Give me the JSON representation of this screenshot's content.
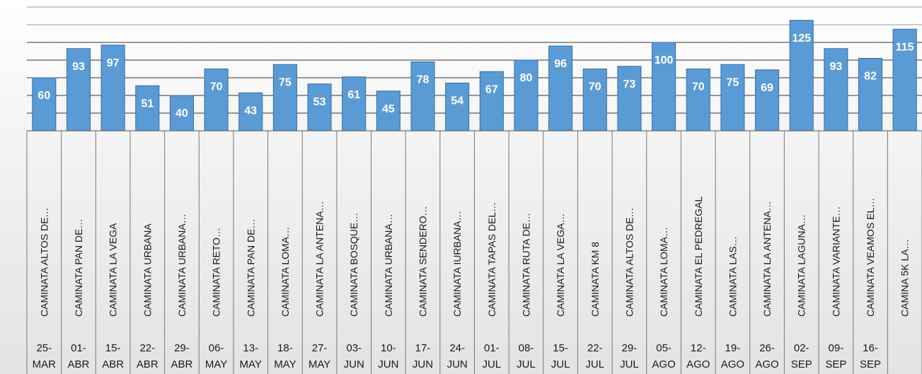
{
  "chart_data": {
    "type": "bar",
    "title": "",
    "xlabel": "",
    "ylabel": "",
    "ylim": [
      0,
      140
    ],
    "grid": true,
    "legend": "none",
    "colors": {
      "bar": "#5b9bd5",
      "bar_edge": "#2f6fae",
      "bar_label": "#ffffff",
      "text": "#1a1a1a",
      "grid": "#333333"
    },
    "categories": [
      "CAMINATA ALTOS DE…",
      "CAMINATA PAN DE…",
      "CAMINATA LA VEGA",
      "CAMINATA URBANA",
      "CAMINATA URBANA…",
      "CAMINATA RETO…",
      "CAMINATA PAN DE…",
      "CAMINATA LOMA…",
      "CAMINATA LA ANTENA…",
      "CAMINATA BOSQUE…",
      "CAMINATA URBANA…",
      "CAMINATA SENDERO…",
      "CAMINATA IURBANA…",
      "CAMINATA TAPAS DEL…",
      "CAMINATA RUTA DE…",
      "CAMINATA LA VEGA…",
      "CAMINATA KM 8",
      "CAMINATA ALTOS DE…",
      "CAMINATA LOMA…",
      "CAMINATA EL PEDREGAL",
      "CAMINATA LAS…",
      "CAMINATA LA ANTENA…",
      "CAMINATA LAGUNA…",
      "CAMINATA VARIANTE…",
      "CAMINATA VEAMOS EL…",
      "CAMINA 5K LA…"
    ],
    "dates": [
      [
        "25-",
        "MAR"
      ],
      [
        "01-",
        "ABR"
      ],
      [
        "15-",
        "ABR"
      ],
      [
        "22-",
        "ABR"
      ],
      [
        "29-",
        "ABR"
      ],
      [
        "06-",
        "MAY"
      ],
      [
        "13-",
        "MAY"
      ],
      [
        "18-",
        "MAY"
      ],
      [
        "27-",
        "MAY"
      ],
      [
        "03-",
        "JUN"
      ],
      [
        "10-",
        "JUN"
      ],
      [
        "17-",
        "JUN"
      ],
      [
        "24-",
        "JUN"
      ],
      [
        "01-",
        "JUL"
      ],
      [
        "08-",
        "JUL"
      ],
      [
        "15-",
        "JUL"
      ],
      [
        "22-",
        "JUL"
      ],
      [
        "29-",
        "JUL"
      ],
      [
        "05-",
        "AGO"
      ],
      [
        "12-",
        "AGO"
      ],
      [
        "19-",
        "AGO"
      ],
      [
        "26-",
        "AGO"
      ],
      [
        "02-",
        "SEP"
      ],
      [
        "09-",
        "SEP"
      ],
      [
        "16-",
        "SEP"
      ],
      [
        "",
        ""
      ]
    ],
    "values": [
      60,
      93,
      97,
      51,
      40,
      70,
      43,
      75,
      53,
      61,
      45,
      78,
      54,
      67,
      80,
      96,
      70,
      73,
      100,
      70,
      75,
      69,
      125,
      93,
      82,
      115
    ]
  }
}
